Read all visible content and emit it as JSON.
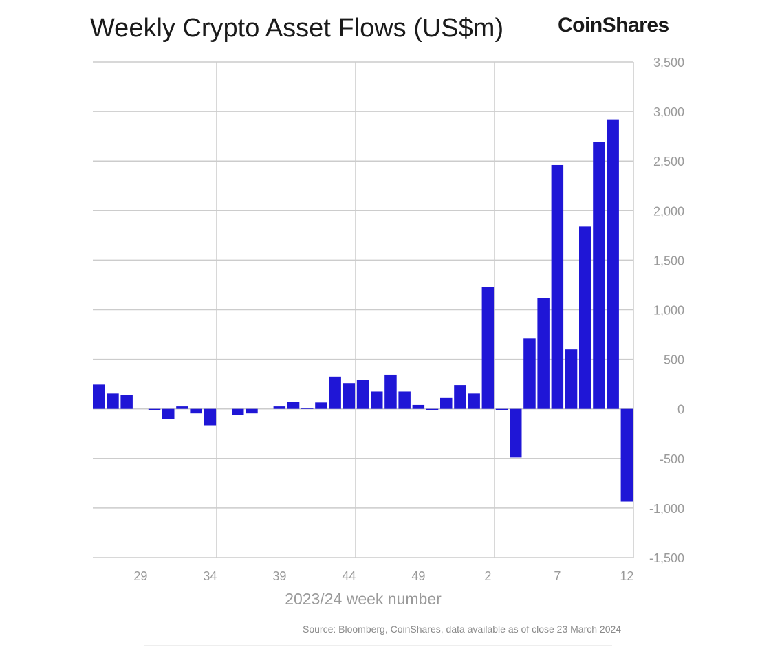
{
  "header": {
    "title": "Weekly Crypto Asset Flows (US$m)",
    "brand": "CoinShares"
  },
  "footer": {
    "source": "Source: Bloomberg, CoinShares, data available as of close 23 March 2024"
  },
  "colors": {
    "bar": "#1f16d6",
    "grid": "#cccccc",
    "tick_text": "#9a9a9a",
    "title_text": "#1a1a1a"
  },
  "chart_data": {
    "type": "bar",
    "title": "Weekly Crypto Asset Flows (US$m)",
    "xlabel": "2023/24 week number",
    "ylabel": "US$m",
    "ylim": [
      -1500,
      3500
    ],
    "yticks": [
      3500,
      3000,
      2500,
      2000,
      1500,
      1000,
      500,
      0,
      -500,
      -1000,
      -1500
    ],
    "ytick_labels": [
      "3,500",
      "3,000",
      "2,500",
      "2,000",
      "1,500",
      "1,000",
      "500",
      "0",
      "-500",
      "-1,000",
      "-1,500"
    ],
    "xtick_labels": [
      "29",
      "34",
      "39",
      "44",
      "49",
      "2",
      "7",
      "12"
    ],
    "xtick_indices": [
      3,
      8,
      13,
      18,
      23,
      28,
      33,
      38
    ],
    "categories": [
      "26",
      "27",
      "28",
      "29",
      "30",
      "31",
      "32",
      "33",
      "34",
      "35",
      "36",
      "37",
      "38",
      "39",
      "40",
      "41",
      "42",
      "43",
      "44",
      "45",
      "46",
      "47",
      "48",
      "49",
      "50",
      "51",
      "52",
      "1",
      "2",
      "3",
      "4",
      "5",
      "6",
      "7",
      "8",
      "9",
      "10",
      "11",
      "12"
    ],
    "values": [
      245,
      155,
      140,
      0,
      -15,
      -105,
      25,
      -45,
      -165,
      0,
      -60,
      -45,
      0,
      25,
      70,
      10,
      65,
      325,
      260,
      290,
      175,
      345,
      175,
      40,
      -10,
      110,
      240,
      155,
      1230,
      -15,
      -490,
      710,
      1120,
      2460,
      600,
      1840,
      2690,
      2920,
      -935
    ],
    "grid": true,
    "legend": "none"
  }
}
